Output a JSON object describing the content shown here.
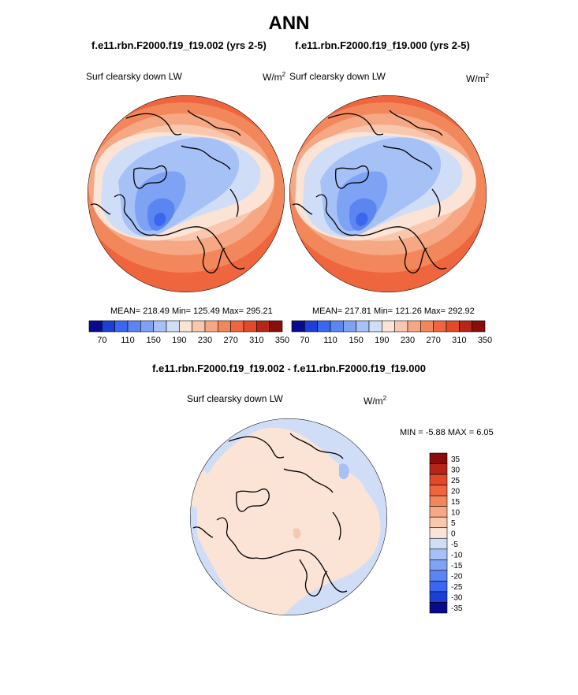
{
  "page": {
    "title": "ANN",
    "case_left": "f.e11.rbn.F2000.f19_f19.002 (yrs 2-5)",
    "case_right": "f.e11.rbn.F2000.f19_f19.000 (yrs 2-5)",
    "diff_title": "f.e11.rbn.F2000.f19_f19.002 - f.e11.rbn.F2000.f19_f19.000"
  },
  "colors": {
    "abs_scale": [
      "#0a0a8c",
      "#1c3fd6",
      "#3a66f0",
      "#5b86f2",
      "#7ea3f4",
      "#a6c1f6",
      "#cfddf7",
      "#fbe3d6",
      "#f8c7ad",
      "#f5a883",
      "#f3875c",
      "#ef653e",
      "#e04a28",
      "#b52617",
      "#8b0d0a"
    ],
    "diff_scale": [
      "#8b0d0a",
      "#b52617",
      "#e04a28",
      "#ef653e",
      "#f3875c",
      "#f5a883",
      "#f8c7ad",
      "#fbe3d6",
      "#cfddf7",
      "#a6c1f6",
      "#7ea3f4",
      "#5b86f2",
      "#3a66f0",
      "#1c3fd6",
      "#0a0a8c"
    ],
    "coast": "#000000"
  },
  "chart_data": [
    {
      "type": "heatmap",
      "projection": "polar-stereographic (north)",
      "title": "Surf clearsky down LW",
      "units": "W/m²",
      "stats_text": "MEAN= 218.49  Min= 125.49  Max= 295.21",
      "mean": 218.49,
      "min": 125.49,
      "max": 295.21,
      "colorbar_levels": [
        70,
        90,
        110,
        130,
        150,
        170,
        190,
        210,
        230,
        250,
        270,
        290,
        310,
        330,
        350
      ],
      "colorbar_tick_labels": [
        "70",
        "110",
        "150",
        "190",
        "230",
        "270",
        "310",
        "350"
      ],
      "legend_placement": "bottom"
    },
    {
      "type": "heatmap",
      "projection": "polar-stereographic (north)",
      "title": "Surf clearsky down LW",
      "units": "W/m²",
      "stats_text": "MEAN= 217.81  Min= 121.26  Max= 292.92",
      "mean": 217.81,
      "min": 121.26,
      "max": 292.92,
      "colorbar_levels": [
        70,
        90,
        110,
        130,
        150,
        170,
        190,
        210,
        230,
        250,
        270,
        290,
        310,
        330,
        350
      ],
      "colorbar_tick_labels": [
        "70",
        "110",
        "150",
        "190",
        "230",
        "270",
        "310",
        "350"
      ],
      "legend_placement": "bottom"
    },
    {
      "type": "heatmap",
      "projection": "polar-stereographic (north)",
      "title": "Surf clearsky down LW",
      "units": "W/m²",
      "stats_text": "MIN =  -5.88 MAX =   6.05",
      "min": -5.88,
      "max": 6.05,
      "colorbar_tick_labels": [
        "35",
        "30",
        "25",
        "20",
        "15",
        "10",
        "5",
        "0",
        "-5",
        "-10",
        "-15",
        "-20",
        "-25",
        "-30",
        "-35"
      ],
      "legend_placement": "right"
    }
  ]
}
